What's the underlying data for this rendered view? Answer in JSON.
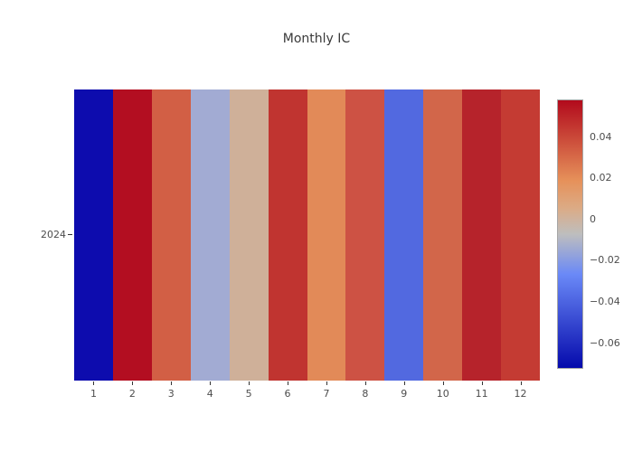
{
  "title": "Monthly IC",
  "chart_data": {
    "type": "heatmap",
    "title": "Monthly IC",
    "x_categories": [
      "1",
      "2",
      "3",
      "4",
      "5",
      "6",
      "7",
      "8",
      "9",
      "10",
      "11",
      "12"
    ],
    "y_categories": [
      "2024"
    ],
    "series": [
      {
        "name": "2024",
        "values": [
          -0.072,
          0.058,
          0.033,
          -0.014,
          0.002,
          0.046,
          0.021,
          0.036,
          -0.039,
          0.031,
          0.052,
          0.044
        ]
      }
    ],
    "cell_colors": [
      "#0d0cae",
      "#b30e21",
      "#d25f45",
      "#a2abd3",
      "#cfb099",
      "#c03430",
      "#e28a58",
      "#cd5244",
      "#5269e0",
      "#d2664a",
      "#b6232b",
      "#c43b33"
    ],
    "colorbar": {
      "vmin": -0.0726,
      "vmax": 0.058,
      "tick_values": [
        0.04,
        0.02,
        0,
        -0.02,
        -0.04,
        -0.06
      ],
      "tick_labels": [
        "0.04",
        "0.02",
        "0",
        "−0.02",
        "−0.04",
        "−0.06"
      ],
      "colorscale": [
        {
          "frac": 0.0,
          "color": "#050aac"
        },
        {
          "frac": 0.35,
          "color": "#6a89f7"
        },
        {
          "frac": 0.5,
          "color": "#bebebe"
        },
        {
          "frac": 0.6,
          "color": "#dcaa84"
        },
        {
          "frac": 0.7,
          "color": "#e6915a"
        },
        {
          "frac": 1.0,
          "color": "#b20a1c"
        }
      ]
    },
    "layout_hints": {
      "grid": false,
      "legend": "none",
      "colorbar_position": "right"
    }
  },
  "colors": {
    "background": "#ffffff",
    "title_text": "#3a3a3a",
    "tick_text": "#4d4d4d",
    "tick_mark": "#333333",
    "colorbar_border": "#a6a6a6"
  }
}
